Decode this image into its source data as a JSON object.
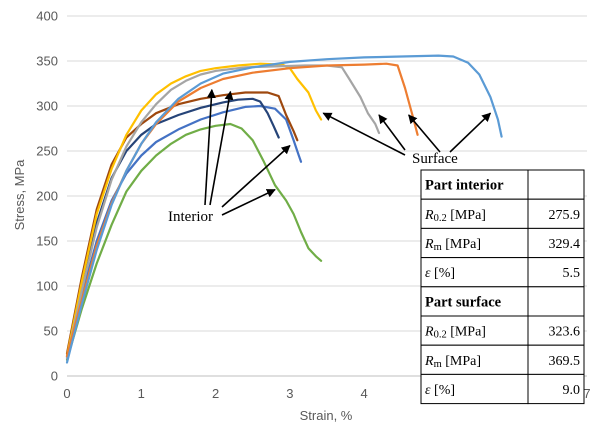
{
  "chart_data": {
    "type": "line",
    "xlabel": "Strain, %",
    "ylabel": "Stress, MPa",
    "xlim": [
      0,
      7
    ],
    "ylim": [
      0,
      400
    ],
    "xticks": [
      "0",
      "1",
      "2",
      "3",
      "4",
      "5",
      "6",
      "7"
    ],
    "yticks": [
      "0",
      "50",
      "100",
      "150",
      "200",
      "250",
      "300",
      "350",
      "400"
    ],
    "grid": "horizontal",
    "series": [
      {
        "color": "#70ad47",
        "group": "interior",
        "points": [
          [
            0,
            18
          ],
          [
            0.2,
            75
          ],
          [
            0.4,
            125
          ],
          [
            0.6,
            168
          ],
          [
            0.8,
            205
          ],
          [
            1.0,
            228
          ],
          [
            1.2,
            245
          ],
          [
            1.4,
            258
          ],
          [
            1.6,
            268
          ],
          [
            1.8,
            274
          ],
          [
            2.0,
            278
          ],
          [
            2.2,
            280
          ],
          [
            2.35,
            275
          ],
          [
            2.5,
            262
          ],
          [
            2.65,
            238
          ],
          [
            2.8,
            212
          ],
          [
            2.95,
            195
          ],
          [
            3.05,
            180
          ],
          [
            3.15,
            160
          ],
          [
            3.25,
            142
          ],
          [
            3.35,
            133
          ],
          [
            3.42,
            128
          ]
        ]
      },
      {
        "color": "#4472c4",
        "group": "interior",
        "points": [
          [
            0,
            20
          ],
          [
            0.2,
            90
          ],
          [
            0.4,
            150
          ],
          [
            0.6,
            195
          ],
          [
            0.8,
            225
          ],
          [
            1.0,
            245
          ],
          [
            1.2,
            260
          ],
          [
            1.5,
            274
          ],
          [
            1.8,
            285
          ],
          [
            2.1,
            293
          ],
          [
            2.4,
            299
          ],
          [
            2.6,
            300
          ],
          [
            2.8,
            297
          ],
          [
            2.95,
            285
          ],
          [
            3.05,
            262
          ],
          [
            3.12,
            245
          ],
          [
            3.15,
            238
          ]
        ]
      },
      {
        "color": "#264478",
        "group": "interior",
        "points": [
          [
            0,
            22
          ],
          [
            0.2,
            100
          ],
          [
            0.4,
            170
          ],
          [
            0.6,
            220
          ],
          [
            0.8,
            250
          ],
          [
            1.0,
            268
          ],
          [
            1.2,
            280
          ],
          [
            1.5,
            290
          ],
          [
            1.8,
            298
          ],
          [
            2.1,
            304
          ],
          [
            2.3,
            307
          ],
          [
            2.5,
            308
          ],
          [
            2.6,
            305
          ],
          [
            2.7,
            292
          ],
          [
            2.78,
            278
          ],
          [
            2.85,
            265
          ]
        ]
      },
      {
        "color": "#9e480e",
        "group": "interior",
        "points": [
          [
            0,
            25
          ],
          [
            0.2,
            110
          ],
          [
            0.4,
            185
          ],
          [
            0.6,
            235
          ],
          [
            0.8,
            265
          ],
          [
            1.0,
            280
          ],
          [
            1.2,
            292
          ],
          [
            1.5,
            302
          ],
          [
            1.8,
            308
          ],
          [
            2.1,
            312
          ],
          [
            2.4,
            315
          ],
          [
            2.7,
            315
          ],
          [
            2.85,
            311
          ],
          [
            2.95,
            290
          ],
          [
            3.05,
            272
          ],
          [
            3.1,
            262
          ]
        ]
      },
      {
        "color": "#ffc000",
        "group": "surface",
        "points": [
          [
            0,
            22
          ],
          [
            0.2,
            105
          ],
          [
            0.4,
            180
          ],
          [
            0.6,
            230
          ],
          [
            0.8,
            268
          ],
          [
            1.0,
            295
          ],
          [
            1.2,
            313
          ],
          [
            1.4,
            325
          ],
          [
            1.6,
            333
          ],
          [
            1.8,
            339
          ],
          [
            2.0,
            342
          ],
          [
            2.3,
            345
          ],
          [
            2.6,
            347
          ],
          [
            2.9,
            346
          ],
          [
            3.0,
            342
          ],
          [
            3.1,
            330
          ],
          [
            3.25,
            315
          ],
          [
            3.35,
            295
          ],
          [
            3.42,
            285
          ]
        ]
      },
      {
        "color": "#a5a5a5",
        "group": "surface",
        "points": [
          [
            0,
            20
          ],
          [
            0.2,
            95
          ],
          [
            0.4,
            165
          ],
          [
            0.6,
            218
          ],
          [
            0.8,
            255
          ],
          [
            1.0,
            282
          ],
          [
            1.2,
            302
          ],
          [
            1.4,
            318
          ],
          [
            1.6,
            328
          ],
          [
            1.8,
            335
          ],
          [
            2.0,
            339
          ],
          [
            2.4,
            343
          ],
          [
            2.8,
            344
          ],
          [
            3.2,
            345
          ],
          [
            3.5,
            345
          ],
          [
            3.7,
            343
          ],
          [
            3.8,
            330
          ],
          [
            3.95,
            310
          ],
          [
            4.05,
            292
          ],
          [
            4.15,
            280
          ],
          [
            4.2,
            270
          ]
        ]
      },
      {
        "color": "#ed7d31",
        "group": "surface",
        "points": [
          [
            0,
            22
          ],
          [
            0.2,
            85
          ],
          [
            0.4,
            145
          ],
          [
            0.6,
            192
          ],
          [
            0.8,
            228
          ],
          [
            1.0,
            258
          ],
          [
            1.2,
            280
          ],
          [
            1.5,
            305
          ],
          [
            1.8,
            320
          ],
          [
            2.1,
            330
          ],
          [
            2.5,
            337
          ],
          [
            3.0,
            342
          ],
          [
            3.5,
            345
          ],
          [
            4.0,
            346
          ],
          [
            4.3,
            347
          ],
          [
            4.45,
            345
          ],
          [
            4.55,
            320
          ],
          [
            4.65,
            290
          ],
          [
            4.72,
            268
          ]
        ]
      },
      {
        "color": "#5b9bd5",
        "group": "surface",
        "points": [
          [
            0,
            15
          ],
          [
            0.2,
            80
          ],
          [
            0.4,
            140
          ],
          [
            0.6,
            190
          ],
          [
            0.8,
            228
          ],
          [
            1.0,
            258
          ],
          [
            1.2,
            282
          ],
          [
            1.5,
            308
          ],
          [
            1.8,
            325
          ],
          [
            2.1,
            336
          ],
          [
            2.5,
            343
          ],
          [
            3.0,
            349
          ],
          [
            3.5,
            352
          ],
          [
            4.0,
            354
          ],
          [
            4.5,
            355
          ],
          [
            5.0,
            356
          ],
          [
            5.2,
            355
          ],
          [
            5.4,
            348
          ],
          [
            5.55,
            335
          ],
          [
            5.7,
            310
          ],
          [
            5.8,
            285
          ],
          [
            5.85,
            266
          ]
        ]
      }
    ],
    "annotations": [
      {
        "label": "Interior",
        "anchor": [
          1.7,
          211
        ],
        "arrows_to": [
          [
            1.95,
            318
          ],
          [
            2.2,
            316
          ],
          [
            3.0,
            256
          ],
          [
            2.8,
            207
          ]
        ]
      },
      {
        "label": "Surface",
        "anchor": [
          4.6,
          158
        ],
        "arrows_to": [
          [
            3.45,
            292
          ],
          [
            4.2,
            290
          ],
          [
            4.6,
            290
          ],
          [
            5.7,
            292
          ]
        ]
      }
    ]
  },
  "table": {
    "sections": [
      {
        "header": "Part interior",
        "rows": [
          {
            "sym": "R",
            "sub": "0.2",
            "unit": " [MPa]",
            "value": "275.9"
          },
          {
            "sym": "R",
            "sub": "m",
            "unit": " [MPa]",
            "value": "329.4"
          },
          {
            "sym": "ε",
            "sub": "",
            "unit": " [%]",
            "value": "5.5"
          }
        ]
      },
      {
        "header": "Part surface",
        "rows": [
          {
            "sym": "R",
            "sub": "0.2",
            "unit": " [MPa]",
            "value": "323.6"
          },
          {
            "sym": "R",
            "sub": "m",
            "unit": " [MPa]",
            "value": "369.5"
          },
          {
            "sym": "ε",
            "sub": "",
            "unit": " [%]",
            "value": "9.0"
          }
        ]
      }
    ]
  },
  "colors": {
    "grid": "#d9d9d9",
    "axis": "#bfbfbf",
    "arrow": "#000000"
  }
}
